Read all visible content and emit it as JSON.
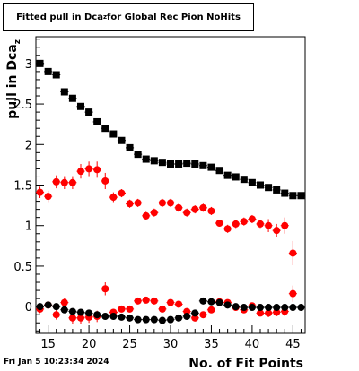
{
  "title": {
    "prefix": "Fitted pull in Dca",
    "subscript": "z",
    "suffix": " for Global Rec Pion NoHits"
  },
  "timestamp": "Fri Jan  5 10:23:34 2024",
  "chart_data": {
    "type": "scatter",
    "title": "Fitted pull in Dca_z for Global Rec Pion NoHits",
    "xlabel": "No. of Fit Points",
    "ylabel": "pull in Dca_z",
    "xlim": [
      13.5,
      46.5
    ],
    "ylim": [
      -0.33,
      3.33
    ],
    "x_ticks": [
      15,
      20,
      25,
      30,
      35,
      40,
      45
    ],
    "y_ticks": [
      0,
      0.5,
      1,
      1.5,
      2,
      2.5,
      3
    ],
    "tick_labels_x": [
      "15",
      "20",
      "25",
      "30",
      "35",
      "40",
      "45"
    ],
    "tick_labels_y": [
      "0",
      "0.5",
      "1",
      "1.5",
      "2",
      "2.5",
      "3"
    ],
    "colors": {
      "black": "#000000",
      "red": "#ff0000"
    },
    "series": [
      {
        "color": "#000000",
        "marker": "square",
        "x": [
          14,
          15,
          16,
          17,
          18,
          19,
          20,
          21,
          22,
          23,
          24,
          25,
          26,
          27,
          28,
          29,
          30,
          31,
          32,
          33,
          34,
          35,
          36,
          37,
          38,
          39,
          40,
          41,
          42,
          43,
          44,
          45,
          46
        ],
        "y": [
          3.0,
          2.9,
          2.86,
          2.65,
          2.57,
          2.47,
          2.4,
          2.28,
          2.2,
          2.13,
          2.05,
          1.96,
          1.88,
          1.82,
          1.8,
          1.78,
          1.76,
          1.76,
          1.77,
          1.76,
          1.74,
          1.72,
          1.68,
          1.62,
          1.6,
          1.57,
          1.53,
          1.5,
          1.47,
          1.44,
          1.4,
          1.37,
          1.37
        ]
      },
      {
        "color": "#ff0000",
        "marker": "circle",
        "x": [
          14,
          15,
          16,
          17,
          18,
          19,
          20,
          21,
          22,
          23,
          24,
          25,
          26,
          27,
          28,
          29,
          30,
          31,
          32,
          33,
          34,
          35,
          36,
          37,
          38,
          39,
          40,
          41,
          42,
          43,
          44,
          45
        ],
        "y": [
          1.41,
          1.36,
          1.54,
          1.53,
          1.53,
          1.67,
          1.7,
          1.69,
          1.55,
          1.35,
          1.4,
          1.27,
          1.28,
          1.12,
          1.16,
          1.28,
          1.28,
          1.22,
          1.16,
          1.2,
          1.22,
          1.18,
          1.03,
          0.96,
          1.02,
          1.05,
          1.08,
          1.02,
          1.0,
          0.94,
          1.0,
          0.66
        ],
        "err": [
          0.07,
          0.07,
          0.08,
          0.08,
          0.08,
          0.09,
          0.09,
          0.1,
          0.1,
          0.06,
          0.05,
          0.05,
          0.05,
          0.05,
          0.05,
          0.05,
          0.05,
          0.05,
          0.05,
          0.05,
          0.05,
          0.05,
          0.04,
          0.05,
          0.05,
          0.05,
          0.05,
          0.05,
          0.08,
          0.08,
          0.1,
          0.15
        ]
      },
      {
        "color": "#ff0000",
        "marker": "circle",
        "x": [
          14,
          15,
          16,
          17,
          18,
          19,
          20,
          21,
          22,
          23,
          24,
          25,
          26,
          27,
          28,
          29,
          30,
          31,
          32,
          33,
          34,
          35,
          36,
          37,
          38,
          39,
          40,
          41,
          42,
          43,
          44,
          45
        ],
        "y": [
          -0.03,
          0.02,
          -0.1,
          0.05,
          -0.14,
          -0.14,
          -0.13,
          -0.12,
          0.22,
          -0.07,
          -0.03,
          -0.03,
          0.07,
          0.08,
          0.07,
          -0.03,
          0.05,
          0.03,
          -0.06,
          -0.14,
          -0.1,
          -0.04,
          0.06,
          0.05,
          -0.01,
          -0.04,
          0.01,
          -0.08,
          -0.08,
          -0.07,
          -0.06,
          0.16
        ],
        "err": [
          0.05,
          0.05,
          0.06,
          0.06,
          0.07,
          0.07,
          0.07,
          0.07,
          0.08,
          0.04,
          0.04,
          0.04,
          0.04,
          0.04,
          0.04,
          0.04,
          0.04,
          0.04,
          0.04,
          0.04,
          0.04,
          0.04,
          0.04,
          0.04,
          0.04,
          0.04,
          0.04,
          0.04,
          0.05,
          0.05,
          0.06,
          0.1
        ]
      },
      {
        "color": "#000000",
        "marker": "circle",
        "x": [
          14,
          15,
          16,
          17,
          18,
          19,
          20,
          21,
          22,
          23,
          24,
          25,
          26,
          27,
          28,
          29,
          30,
          31,
          32,
          33,
          34,
          35,
          36,
          37,
          38,
          39,
          40,
          41,
          42,
          43,
          44,
          45,
          46
        ],
        "y": [
          0.0,
          0.02,
          0.0,
          -0.04,
          -0.06,
          -0.07,
          -0.08,
          -0.1,
          -0.12,
          -0.12,
          -0.13,
          -0.14,
          -0.16,
          -0.16,
          -0.16,
          -0.17,
          -0.16,
          -0.14,
          -0.12,
          -0.08,
          0.07,
          0.06,
          0.05,
          0.02,
          0.0,
          -0.01,
          -0.01,
          -0.01,
          -0.01,
          -0.01,
          -0.01,
          -0.01,
          -0.01
        ]
      }
    ]
  }
}
